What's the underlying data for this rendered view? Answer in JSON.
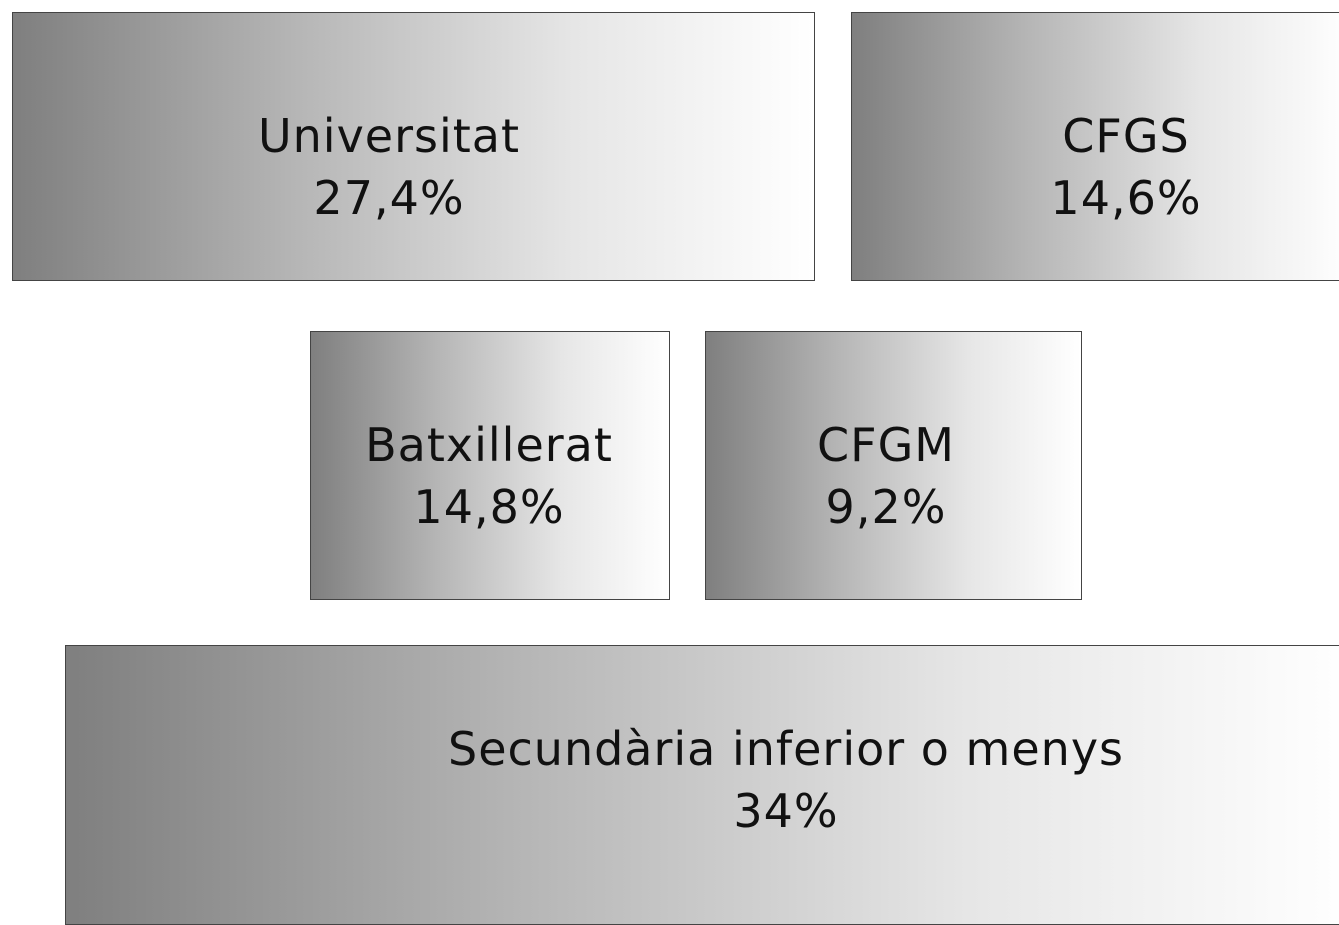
{
  "nodes": [
    {
      "label": "Universitat",
      "value": "27,4%"
    },
    {
      "label": "CFGS",
      "value": "14,6%"
    },
    {
      "label": "Batxillerat",
      "value": "14,8%"
    },
    {
      "label": "CFGM",
      "value": "9,2%"
    },
    {
      "label": "Secundària inferior o menys",
      "value": "34%"
    }
  ]
}
